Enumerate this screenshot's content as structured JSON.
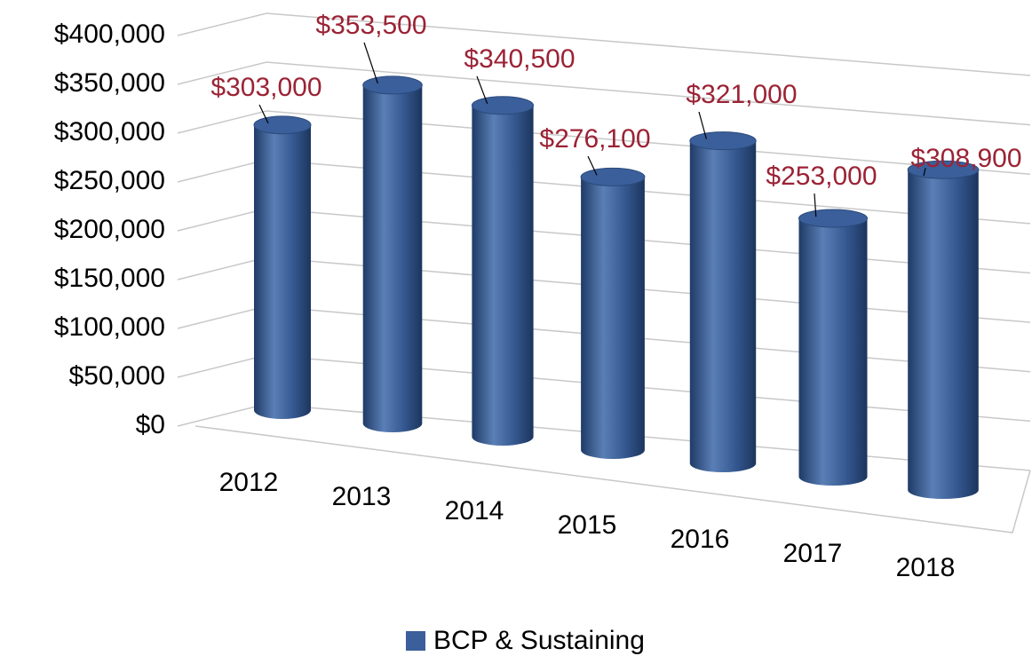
{
  "chart_data": {
    "type": "bar",
    "categories": [
      "2012",
      "2013",
      "2014",
      "2015",
      "2016",
      "2017",
      "2018"
    ],
    "series": [
      {
        "name": "BCP & Sustaining",
        "color": "#3a5f9a",
        "values": [
          303000,
          353500,
          340500,
          276100,
          321000,
          253000,
          308900
        ],
        "value_labels": [
          "$303,000",
          "$353,500",
          "$340,500",
          "$276,100",
          "$321,000",
          "$253,000",
          "$308,900"
        ]
      }
    ],
    "ylim": [
      0,
      400000
    ],
    "yticks": [
      {
        "value": 0,
        "label": "$0"
      },
      {
        "value": 50000,
        "label": "$50,000"
      },
      {
        "value": 100000,
        "label": "$100,000"
      },
      {
        "value": 150000,
        "label": "$150,000"
      },
      {
        "value": 200000,
        "label": "$200,000"
      },
      {
        "value": 250000,
        "label": "$250,000"
      },
      {
        "value": 300000,
        "label": "$300,000"
      },
      {
        "value": 350000,
        "label": "$350,000"
      },
      {
        "value": 400000,
        "label": "$400,000"
      }
    ],
    "grid": true,
    "legend": "bottom"
  }
}
